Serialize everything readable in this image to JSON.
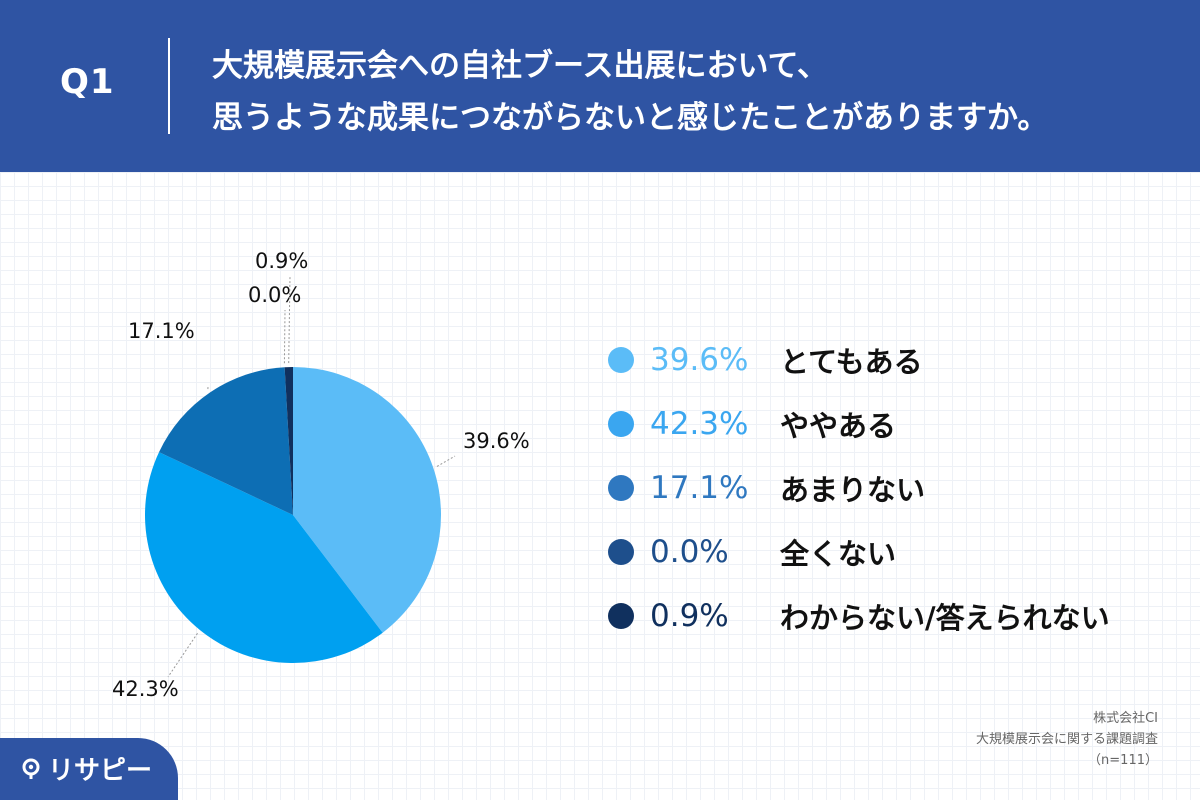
{
  "header": {
    "question_label": "Q1",
    "title_line1": "大規模展示会への自社ブース出展において、",
    "title_line2": "思うような成果につながらないと感じたことがありますか。"
  },
  "chart_data": {
    "type": "pie",
    "slices": [
      {
        "label": "とてもある",
        "value": 39.6,
        "display": "39.6%",
        "color": "#5bbcf7"
      },
      {
        "label": "ややある",
        "value": 42.3,
        "display": "42.3%",
        "color": "#00a0f0"
      },
      {
        "label": "あまりない",
        "value": 17.1,
        "display": "17.1%",
        "color": "#0d6eb4"
      },
      {
        "label": "全くない",
        "value": 0.0,
        "display": "0.0%",
        "color": "#1e4f8c"
      },
      {
        "label": "わからない/答えられない",
        "value": 0.9,
        "display": "0.9%",
        "color": "#10305e"
      }
    ],
    "legend_placement": "right"
  },
  "legend_colors": [
    "#5bbcf7",
    "#3aa6f0",
    "#2f78c0",
    "#1e4f8c",
    "#10305e"
  ],
  "source": {
    "company": "株式会社CI",
    "survey": "大規模展示会に関する課題調査",
    "sample": "（n=111）"
  },
  "logo": {
    "text": "リサピー",
    "icon": "pin-icon"
  }
}
